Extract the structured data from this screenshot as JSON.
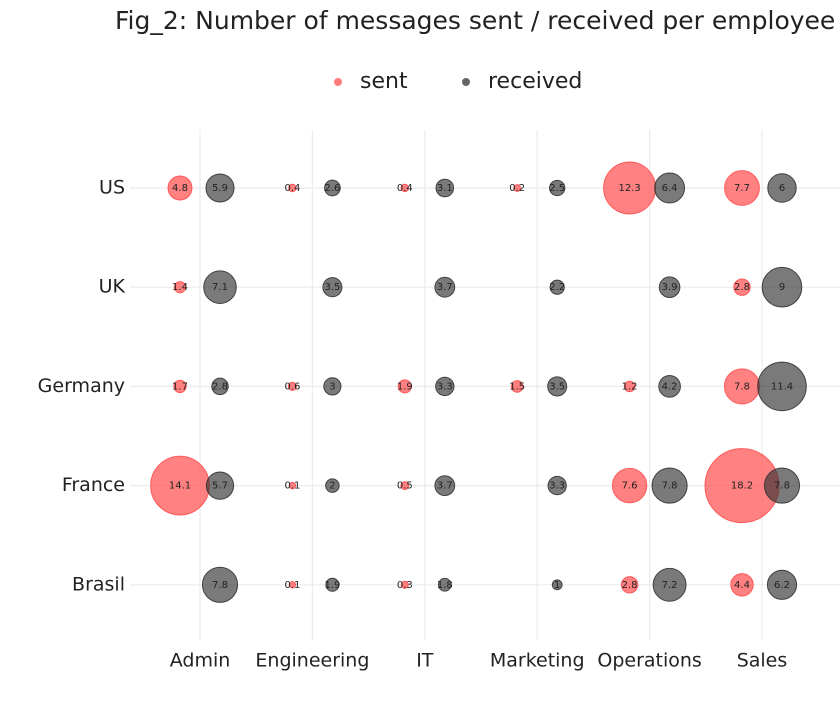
{
  "chart_data": {
    "type": "bubble-grid",
    "title": "Fig_2: Number of messages sent / received per employee",
    "x_categories": [
      "Admin",
      "Engineering",
      "IT",
      "Marketing",
      "Operations",
      "Sales"
    ],
    "y_categories": [
      "US",
      "UK",
      "Germany",
      "France",
      "Brasil"
    ],
    "legend_position": "top",
    "grid": true,
    "series": [
      {
        "name": "sent",
        "color": "#ff5050",
        "values": [
          [
            4.8,
            0.4,
            0.4,
            0.2,
            12.3,
            7.7
          ],
          [
            1.4,
            null,
            null,
            null,
            null,
            2.8
          ],
          [
            1.7,
            0.6,
            1.9,
            1.5,
            1.2,
            7.8
          ],
          [
            14.1,
            0.1,
            0.5,
            null,
            7.6,
            18.2
          ],
          [
            null,
            0.1,
            0.3,
            null,
            2.8,
            4.4
          ]
        ]
      },
      {
        "name": "received",
        "color": "#333333",
        "values": [
          [
            5.9,
            2.6,
            3.1,
            2.5,
            6.4,
            6
          ],
          [
            7.1,
            3.5,
            3.7,
            2.2,
            3.9,
            9
          ],
          [
            2.8,
            3,
            3.3,
            3.5,
            4.2,
            11.4
          ],
          [
            5.7,
            2,
            3.7,
            3.3,
            7.8,
            7.8
          ],
          [
            7.8,
            1.9,
            1.8,
            1,
            7.2,
            6.2
          ]
        ]
      }
    ]
  }
}
